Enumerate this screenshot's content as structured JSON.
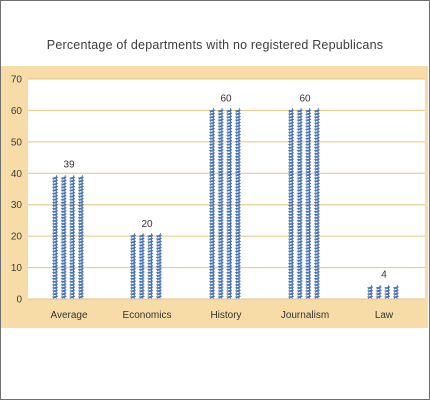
{
  "chart_data": {
    "type": "bar",
    "title": "Percentage of departments with no registered Republicans",
    "categories": [
      "Average",
      "Economics",
      "History",
      "Journalism",
      "Law"
    ],
    "values": [
      39,
      20,
      60,
      60,
      4
    ],
    "data_labels": [
      "39",
      "20",
      "60",
      "60",
      "4"
    ],
    "ylim": [
      0,
      70
    ],
    "yticks": [
      0,
      10,
      20,
      30,
      40,
      50,
      60,
      70
    ],
    "xlabel": "",
    "ylabel": "",
    "grid": true,
    "bar_style": "pictograph of donkey icons",
    "colors": {
      "panel_background": "#f7dca7",
      "plot_background": "#ffffff",
      "gridline": "#e6c47e",
      "bar_icons": "#4a74b5"
    }
  }
}
